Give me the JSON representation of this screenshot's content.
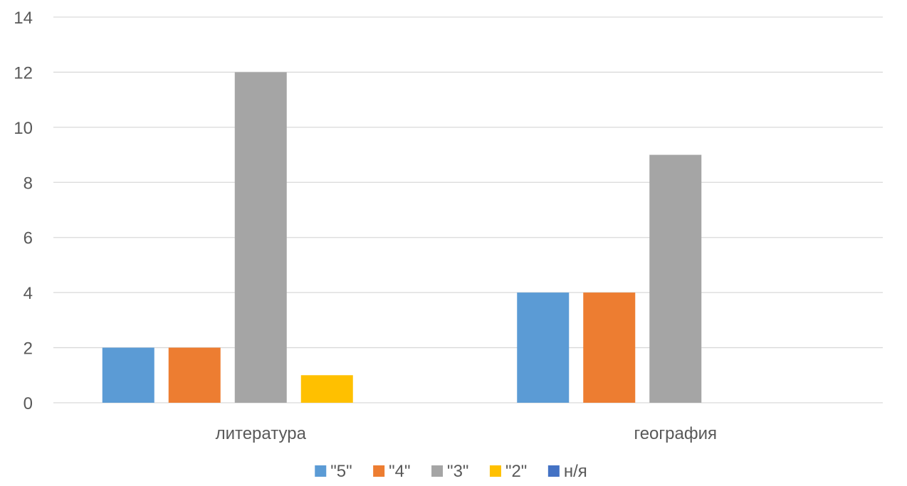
{
  "chart_data": {
    "type": "bar",
    "categories": [
      "литература",
      "география"
    ],
    "series": [
      {
        "name": "\"5\"",
        "values": [
          2,
          4
        ],
        "color": "#5b9bd5"
      },
      {
        "name": "\"4\"",
        "values": [
          2,
          4
        ],
        "color": "#ed7d31"
      },
      {
        "name": "\"3\"",
        "values": [
          12,
          9
        ],
        "color": "#a5a5a5"
      },
      {
        "name": "\"2\"",
        "values": [
          1,
          0
        ],
        "color": "#ffc000"
      },
      {
        "name": "н/я",
        "values": [
          0,
          0
        ],
        "color": "#4472c4"
      }
    ],
    "ylim": [
      0,
      14
    ],
    "yticks": [
      0,
      2,
      4,
      6,
      8,
      10,
      12,
      14
    ],
    "grid": true,
    "legend_position": "bottom",
    "title": "",
    "xlabel": "",
    "ylabel": ""
  }
}
